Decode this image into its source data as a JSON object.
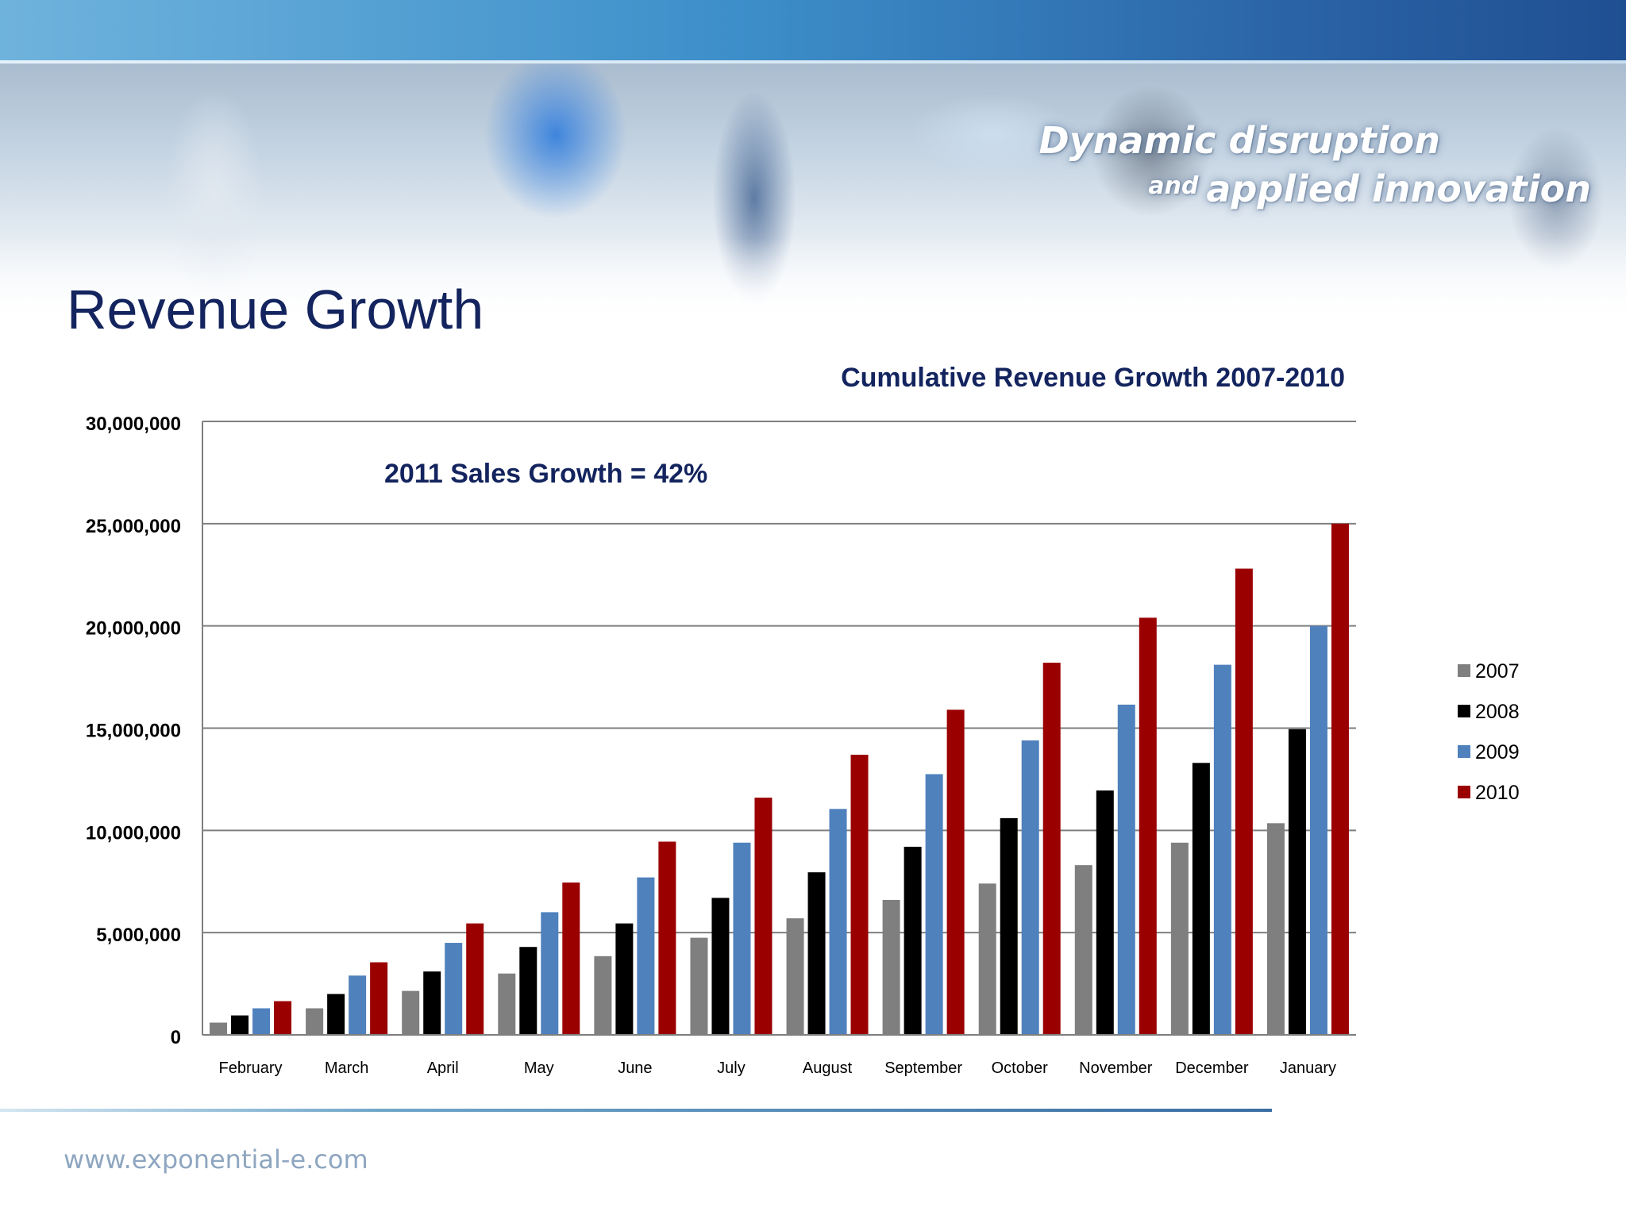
{
  "header": {
    "tagline_line1": "Dynamic disruption",
    "tagline_and": "and",
    "tagline_line2": "applied innovation"
  },
  "slide": {
    "title": "Revenue Growth"
  },
  "footer": {
    "url": "www.exponential-e.com"
  },
  "colors": {
    "title": "#13245e",
    "series_2007": "#7f7f7f",
    "series_2008": "#000000",
    "series_2009": "#4f81bd",
    "series_2010": "#9b0000"
  },
  "chart_data": {
    "type": "bar",
    "title": "Cumulative Revenue Growth 2007-2010",
    "annotation": "2011 Sales Growth = 42%",
    "categories": [
      "February",
      "March",
      "April",
      "May",
      "June",
      "July",
      "August",
      "September",
      "October",
      "November",
      "December",
      "January"
    ],
    "series": [
      {
        "name": "2007",
        "color": "#7f7f7f",
        "values": [
          600000,
          1300000,
          2150000,
          3000000,
          3850000,
          4750000,
          5700000,
          6600000,
          7400000,
          8300000,
          9400000,
          10350000
        ]
      },
      {
        "name": "2008",
        "color": "#000000",
        "values": [
          950000,
          2000000,
          3100000,
          4300000,
          5450000,
          6700000,
          7950000,
          9200000,
          10600000,
          11950000,
          13300000,
          14950000
        ]
      },
      {
        "name": "2009",
        "color": "#4f81bd",
        "values": [
          1300000,
          2900000,
          4500000,
          6000000,
          7700000,
          9400000,
          11050000,
          12750000,
          14400000,
          16150000,
          18100000,
          20000000
        ]
      },
      {
        "name": "2010",
        "color": "#9b0000",
        "values": [
          1650000,
          3550000,
          5450000,
          7450000,
          9450000,
          11600000,
          13700000,
          15900000,
          18200000,
          20400000,
          22800000,
          25000000
        ]
      }
    ],
    "ylim": [
      0,
      30000000
    ],
    "yticks": [
      0,
      5000000,
      10000000,
      15000000,
      20000000,
      25000000,
      30000000
    ],
    "ytick_labels": [
      "0",
      "5,000,000",
      "10,000,000",
      "15,000,000",
      "20,000,000",
      "25,000,000",
      "30,000,000"
    ],
    "grid": true,
    "legend": "right"
  }
}
